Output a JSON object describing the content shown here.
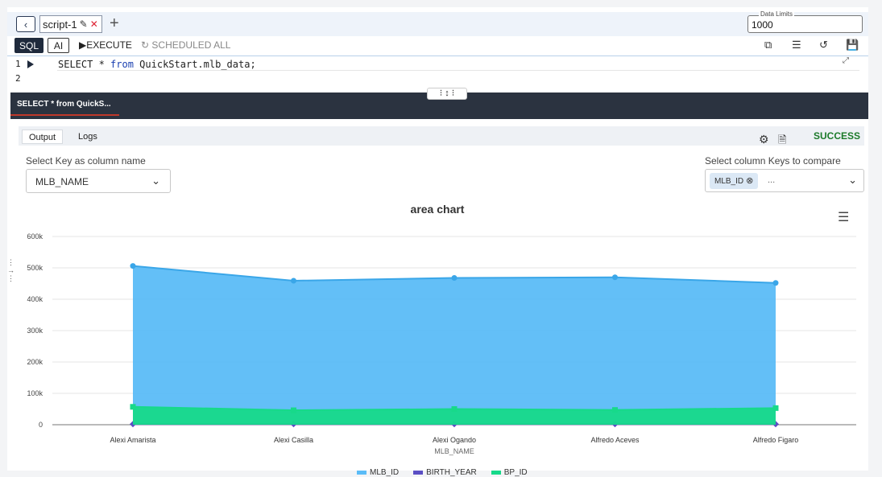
{
  "tabbar": {
    "tab_label": "script-1",
    "data_limits_label": "Data Limits",
    "data_limits_value": "1000"
  },
  "toolbar": {
    "sql_label": "SQL",
    "ai_label": "AI",
    "execute_label": "EXECUTE",
    "scheduled_label": "SCHEDULED ALL"
  },
  "editor": {
    "line1": "1",
    "line2": "2",
    "code_kw1": "SELECT",
    "code_mid": " * ",
    "code_kw2": "from",
    "code_rest": " QuickStart.mlb_data;"
  },
  "result": {
    "tab_label": "SELECT * from QuickS..."
  },
  "output": {
    "tab_output": "Output",
    "tab_logs": "Logs",
    "status": "SUCCESS",
    "key_label": "Select Key as column name",
    "key_value": "MLB_NAME",
    "compare_label": "Select column Keys to compare",
    "compare_chip": "MLB_ID",
    "compare_more": "..."
  },
  "colors": {
    "mlb_id": "#5bbcf7",
    "birth_year": "#5b4fc4",
    "bp_id": "#17d98a"
  },
  "chart_data": {
    "type": "area",
    "title": "area chart",
    "xlabel": "MLB_NAME",
    "ylabel": "",
    "categories": [
      "Alexi Amarista",
      "Alexi Casilla",
      "Alexi Ogando",
      "Alfredo Aceves",
      "Alfredo Figaro"
    ],
    "ylim": [
      0,
      600000
    ],
    "yticks": [
      "0",
      "100k",
      "200k",
      "300k",
      "400k",
      "500k",
      "600k"
    ],
    "ytick_values": [
      0,
      100000,
      200000,
      300000,
      400000,
      500000,
      600000
    ],
    "series": [
      {
        "name": "MLB_ID",
        "values": [
          506000,
          459000,
          468000,
          470000,
          452000
        ]
      },
      {
        "name": "BIRTH_YEAR",
        "values": [
          1989,
          1984,
          1983,
          1982,
          1984
        ]
      },
      {
        "name": "BP_ID",
        "values": [
          57000,
          46000,
          50000,
          47000,
          53000
        ]
      }
    ],
    "grid": true,
    "legend": "bottom-center"
  }
}
